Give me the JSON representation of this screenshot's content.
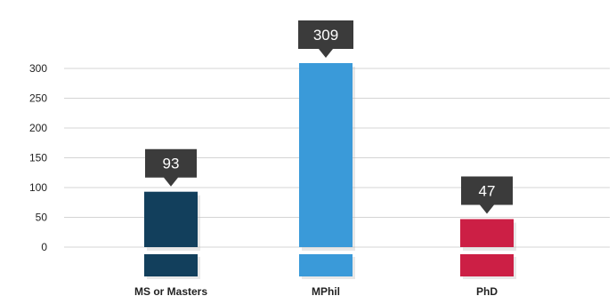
{
  "chart_data": {
    "type": "bar",
    "categories": [
      "MS or Masters",
      "MPhil",
      "PhD"
    ],
    "values": [
      93,
      309,
      47
    ],
    "data_labels": [
      "93",
      "309",
      "47"
    ],
    "colors": [
      "#123f5c",
      "#3a9ad9",
      "#cc1f45"
    ],
    "yticks": [
      0,
      50,
      100,
      150,
      200,
      250,
      300
    ],
    "ylim": [
      0,
      300
    ],
    "grid": true,
    "title": "",
    "xlabel": "",
    "ylabel": ""
  }
}
